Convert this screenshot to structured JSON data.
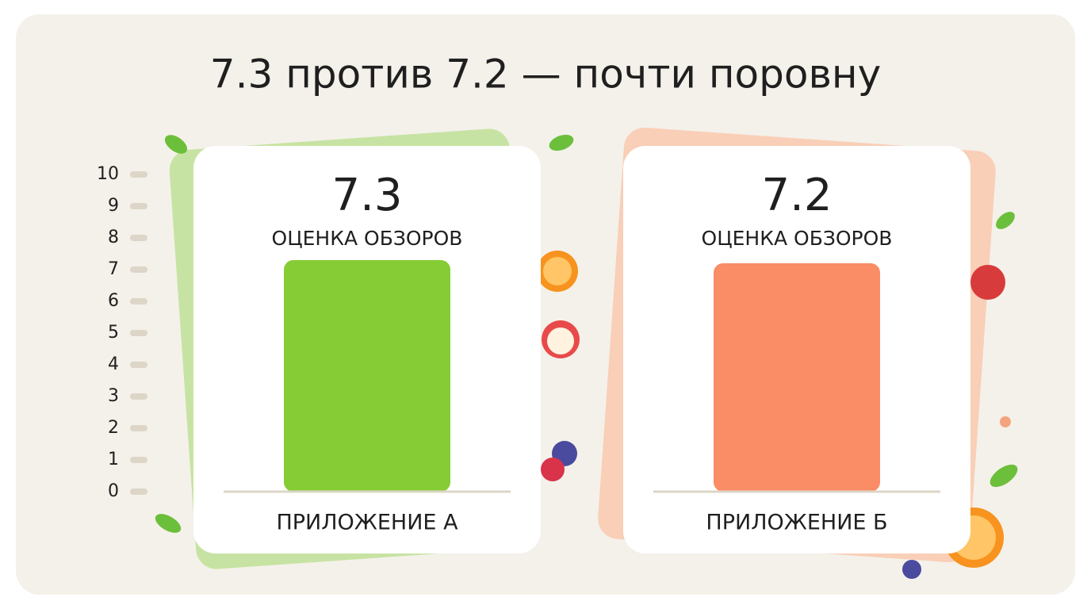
{
  "chart_data": {
    "type": "bar",
    "title": "7.3 против 7.2 — почти поровну",
    "categories": [
      "ПРИЛОЖЕНИЕ А",
      "ПРИЛОЖЕНИЕ Б"
    ],
    "values": [
      7.3,
      7.2
    ],
    "y_label": "ОЦЕНКА ОБЗОРОВ",
    "colors": [
      "#86cc35",
      "#fa8c66"
    ],
    "ylim": [
      0,
      10
    ],
    "yticks": [
      0,
      1,
      2,
      3,
      4,
      5,
      6,
      7,
      8,
      9,
      10
    ]
  }
}
